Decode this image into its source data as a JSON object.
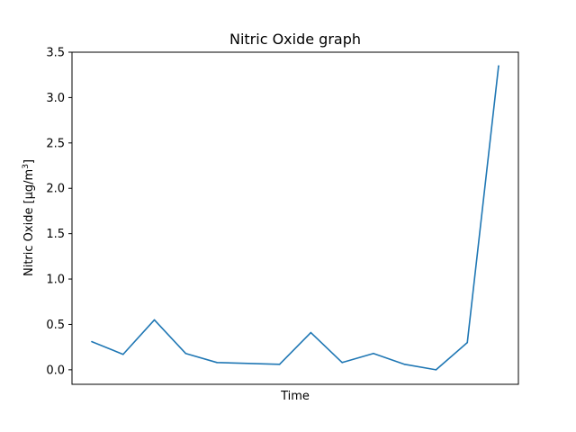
{
  "chart_data": {
    "type": "line",
    "title": "Nitric Oxide graph",
    "xlabel": "Time",
    "ylabel_main": "Nitric Oxide [μg/m",
    "ylabel_sup": "3",
    "ylabel_end": "]",
    "ylim": [
      -0.16,
      3.5
    ],
    "yticks": [
      "0.0",
      "0.5",
      "1.0",
      "1.5",
      "2.0",
      "2.5",
      "3.0",
      "3.5"
    ],
    "x_ticks_visible": false,
    "grid": false,
    "color": "#1f77b4",
    "x": [
      0,
      1,
      2,
      3,
      4,
      6,
      7,
      8,
      9,
      10,
      11,
      12,
      13
    ],
    "values": [
      0.31,
      0.17,
      0.55,
      0.18,
      0.08,
      0.06,
      0.41,
      0.08,
      0.18,
      0.06,
      0.0,
      0.3,
      3.35
    ]
  }
}
